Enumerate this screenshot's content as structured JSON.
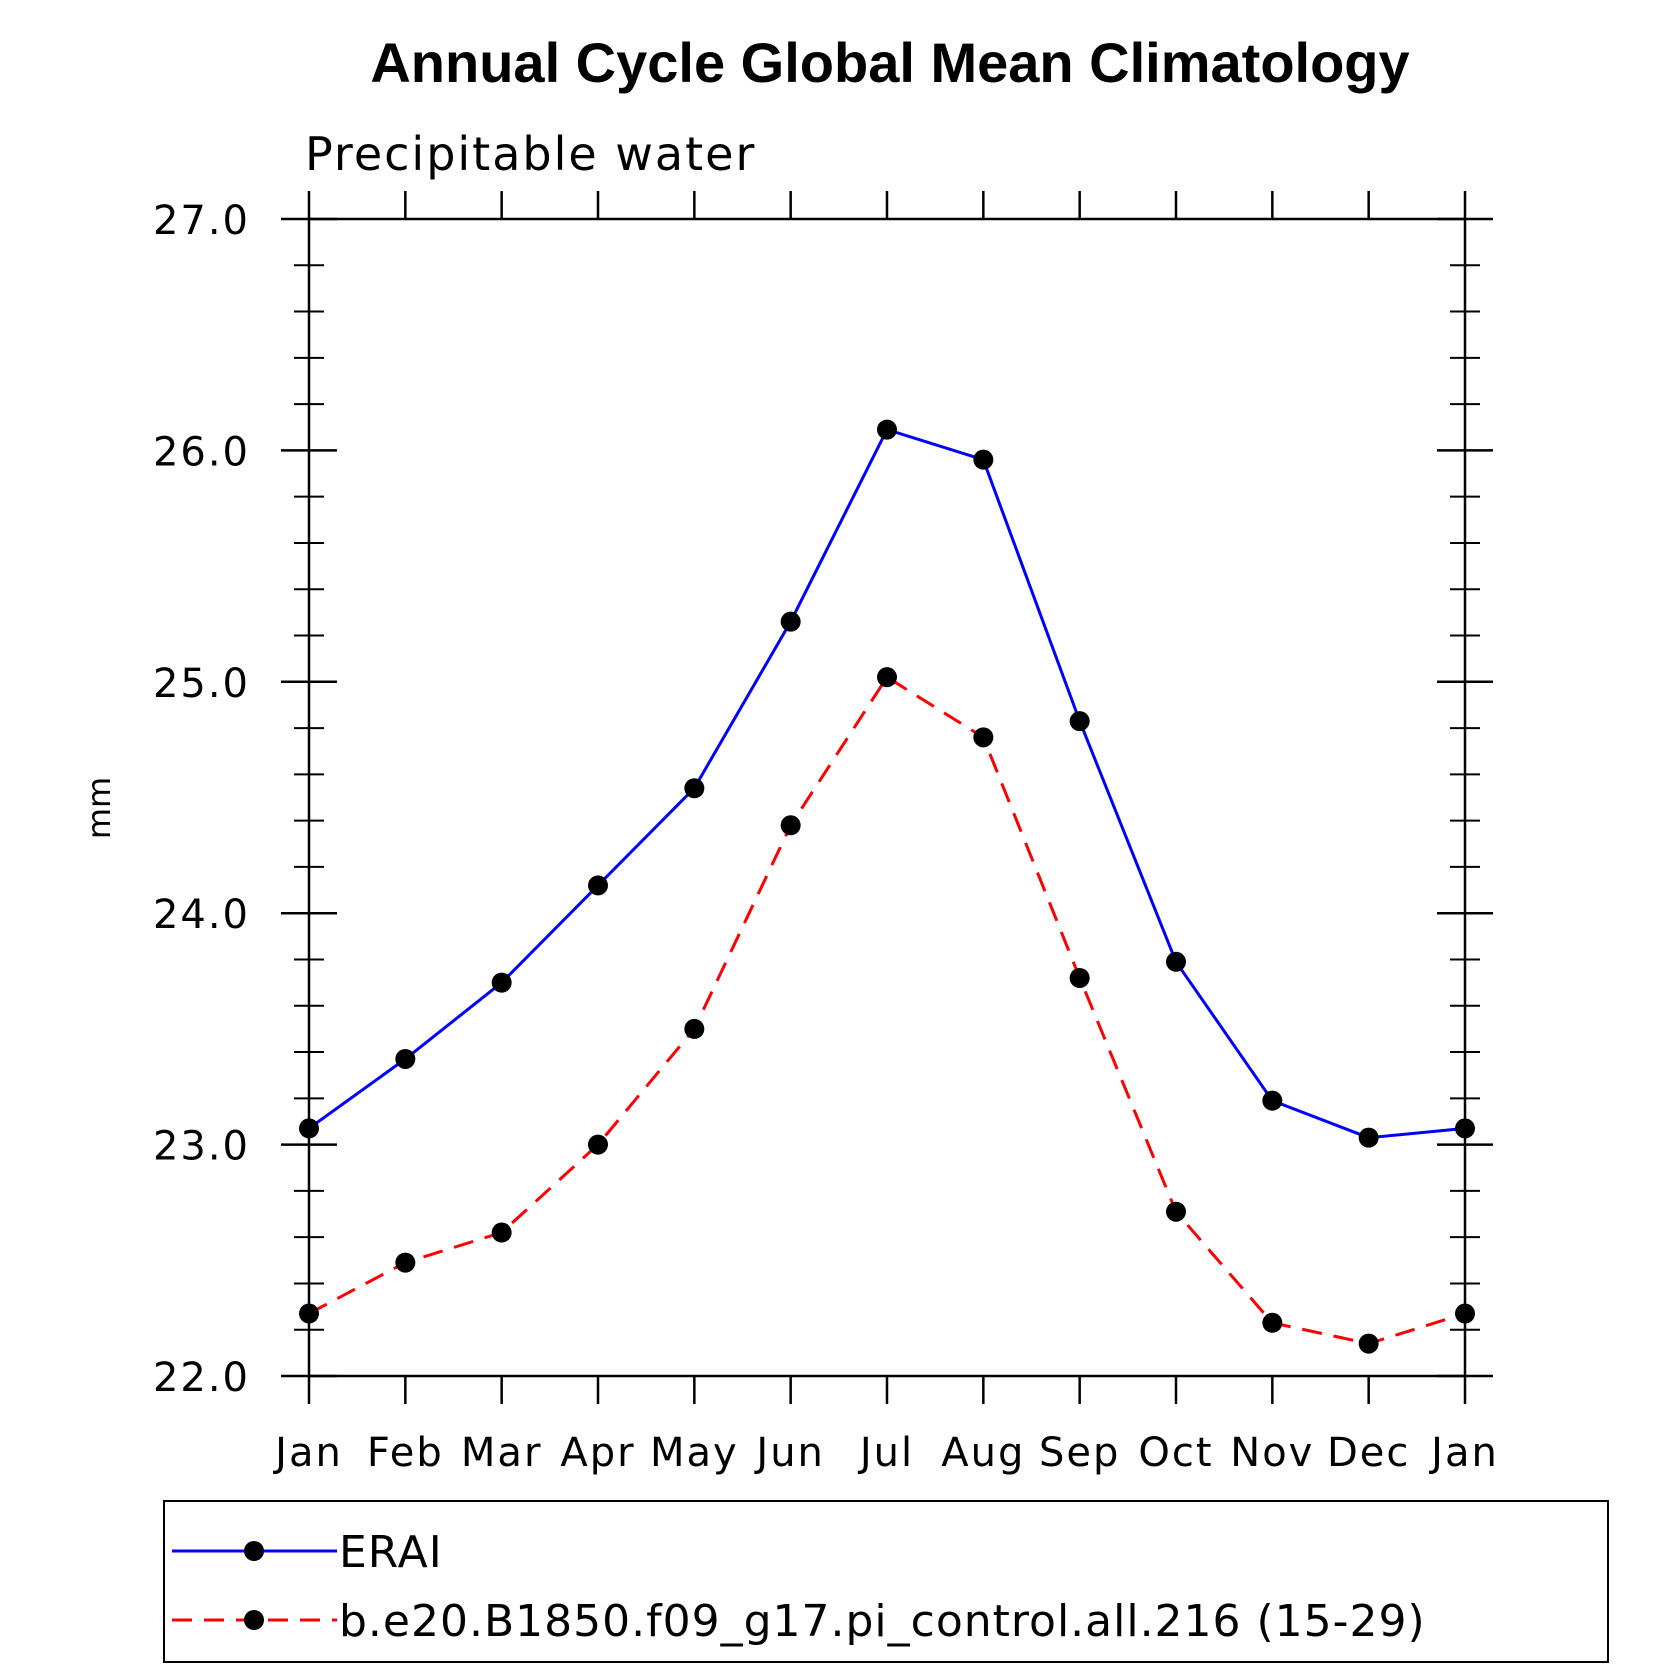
{
  "chart_data": {
    "type": "line",
    "title": "Annual Cycle Global Mean Climatology",
    "subtitle": "Precipitable water",
    "xlabel": "",
    "ylabel": "mm",
    "categories": [
      "Jan",
      "Feb",
      "Mar",
      "Apr",
      "May",
      "Jun",
      "Jul",
      "Aug",
      "Sep",
      "Oct",
      "Nov",
      "Dec",
      "Jan"
    ],
    "ylim": [
      22.0,
      27.0
    ],
    "yticks": [
      "22.0",
      "23.0",
      "24.0",
      "25.0",
      "26.0",
      "27.0"
    ],
    "grid": false,
    "legend_position": "bottom",
    "series": [
      {
        "name": "ERAI",
        "color": "#0000ff",
        "style": "solid",
        "marker": "filled-circle",
        "values": [
          23.07,
          23.37,
          23.7,
          24.12,
          24.54,
          25.26,
          26.09,
          25.96,
          24.83,
          23.79,
          23.19,
          23.03,
          23.07
        ]
      },
      {
        "name": "b.e20.B1850.f09_g17.pi_control.all.216 (15-29)",
        "color": "#ff0000",
        "style": "dashed",
        "marker": "filled-circle",
        "values": [
          22.27,
          22.49,
          22.62,
          23.0,
          23.5,
          24.38,
          25.02,
          24.76,
          23.72,
          22.71,
          22.23,
          22.14,
          22.27
        ]
      }
    ]
  }
}
